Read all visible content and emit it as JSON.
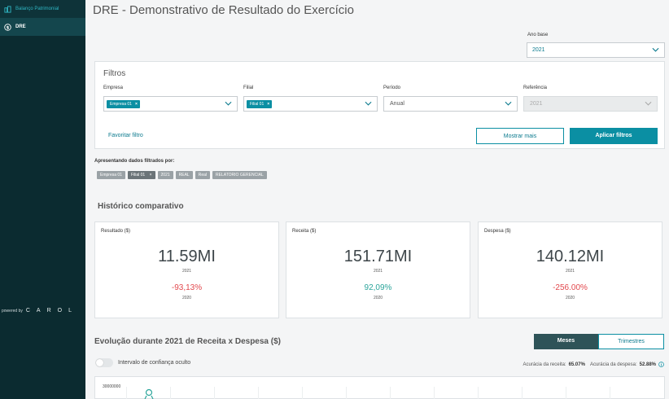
{
  "sidebar": {
    "items": [
      {
        "label": "Balanço Patrimonial",
        "icon": "building-icon"
      },
      {
        "label": "DRE",
        "icon": "dollar-circle-icon"
      }
    ],
    "powered_by": "powered by",
    "logo_text": "CAROL"
  },
  "page": {
    "title": "DRE - Demonstrativo de Resultado do Exercício"
  },
  "ano_base": {
    "label": "Ano base",
    "value": "2021"
  },
  "filters": {
    "title": "Filtros",
    "empresa": {
      "label": "Empresa",
      "chip": "Empresa 01",
      "chip_close": "×"
    },
    "filial": {
      "label": "Filial",
      "chip": "Filial 01",
      "chip_close": "×"
    },
    "periodo": {
      "label": "Período",
      "value": "Anual"
    },
    "referencia": {
      "label": "Referência",
      "value": "2021"
    },
    "favoritar": "Favoritar filtro",
    "mostrar_mais": "Mostrar mais",
    "aplicar": "Aplicar filtros"
  },
  "applied": {
    "label": "Apresentando dados filtrados por:",
    "chips": [
      {
        "text": "Empresa 01"
      },
      {
        "text": "Filial 01",
        "close": "×"
      },
      {
        "text": "2021"
      },
      {
        "text": "REAL"
      },
      {
        "text": "Real"
      },
      {
        "text": "RELATORIO GERENCIAL"
      }
    ]
  },
  "historico": {
    "title": "Histórico comparativo",
    "cards": [
      {
        "label": "Resultado ($)",
        "value": "11.59MI",
        "year": "2021",
        "pct": "-93,13%",
        "trend": "neg",
        "prev_year": "2020"
      },
      {
        "label": "Receita ($)",
        "value": "151.71MI",
        "year": "2021",
        "pct": "92,09%",
        "trend": "pos",
        "prev_year": "2020"
      },
      {
        "label": "Despesa ($)",
        "value": "140.12MI",
        "year": "2021",
        "pct": "-256.00%",
        "trend": "neg",
        "prev_year": "2020"
      }
    ]
  },
  "evolucao": {
    "title": "Evolução durante 2021 de Receita x Despesa ($)",
    "toggle": {
      "meses": "Meses",
      "trimestres": "Trimestres",
      "active": "meses"
    },
    "switch_label": "Intervalo de confiança oculto",
    "accuracy": {
      "receita_label": "Acurácia da receita:",
      "receita_value": "65.07%",
      "despesa_label": "Acurácia da despesa:",
      "despesa_value": "52.88%"
    },
    "chart_tick": "30000000"
  },
  "colors": {
    "accent": "#0b8fa3",
    "sidebar": "#0b2b30",
    "negative": "#e2484d",
    "positive": "#2ba59b"
  }
}
